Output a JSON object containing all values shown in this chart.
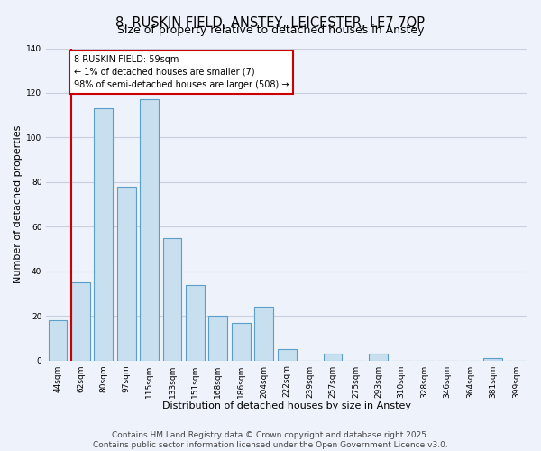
{
  "title": "8, RUSKIN FIELD, ANSTEY, LEICESTER, LE7 7QP",
  "subtitle": "Size of property relative to detached houses in Anstey",
  "xlabel": "Distribution of detached houses by size in Anstey",
  "ylabel": "Number of detached properties",
  "bar_color": "#c8dff0",
  "bar_edge_color": "#5a9ec9",
  "categories": [
    "44sqm",
    "62sqm",
    "80sqm",
    "97sqm",
    "115sqm",
    "133sqm",
    "151sqm",
    "168sqm",
    "186sqm",
    "204sqm",
    "222sqm",
    "239sqm",
    "257sqm",
    "275sqm",
    "293sqm",
    "310sqm",
    "328sqm",
    "346sqm",
    "364sqm",
    "381sqm",
    "399sqm"
  ],
  "values": [
    18,
    35,
    113,
    78,
    117,
    55,
    34,
    20,
    17,
    24,
    5,
    0,
    3,
    0,
    3,
    0,
    0,
    0,
    0,
    1,
    0
  ],
  "annotation_title": "8 RUSKIN FIELD: 59sqm",
  "annotation_line1": "← 1% of detached houses are smaller (7)",
  "annotation_line2": "98% of semi-detached houses are larger (508) →",
  "annotation_box_color": "white",
  "annotation_box_edge_color": "#cc0000",
  "marker_line_color": "#cc0000",
  "ylim": [
    0,
    140
  ],
  "yticks": [
    0,
    20,
    40,
    60,
    80,
    100,
    120,
    140
  ],
  "footer1": "Contains HM Land Registry data © Crown copyright and database right 2025.",
  "footer2": "Contains public sector information licensed under the Open Government Licence v3.0.",
  "background_color": "#eef2fa",
  "grid_color": "#c8d0e0",
  "title_fontsize": 10.5,
  "subtitle_fontsize": 9,
  "axis_label_fontsize": 8,
  "tick_fontsize": 6.5,
  "annotation_fontsize": 7,
  "footer_fontsize": 6.5
}
